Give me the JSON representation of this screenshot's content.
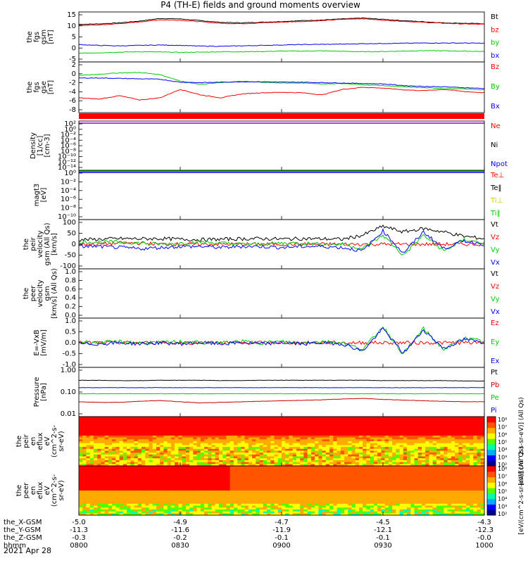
{
  "title": "P4 (TH-E) fields and ground moments overview",
  "date": "2021 Apr 28",
  "colors": {
    "black": "#000000",
    "red": "#ff0000",
    "green": "#00cc00",
    "blue": "#0000ff",
    "gold": "#cccc00",
    "purple": "#9900cc",
    "darkred": "#cc0000"
  },
  "chart_data": [
    {
      "id": "fgs_gsm",
      "type": "line",
      "ylabel": [
        "the",
        "fgs",
        "gsm",
        "[nT]"
      ],
      "yticks": [
        "15",
        "10",
        "5",
        "0",
        "-5"
      ],
      "ylim": [
        -7,
        16
      ],
      "series": [
        {
          "name": "Bt",
          "color": "black",
          "values": [
            10.3,
            10.5,
            11.0,
            11.8,
            13.0,
            12.8,
            12.0,
            11.2,
            11.0,
            11.3,
            11.6,
            12.0,
            12.3,
            12.8,
            13.2,
            12.6,
            12.0,
            11.5,
            11.0,
            10.8,
            10.6
          ]
        },
        {
          "name": "bz",
          "color": "red",
          "values": [
            9.8,
            10.0,
            10.6,
            11.4,
            12.4,
            12.2,
            11.5,
            10.8,
            10.6,
            11.0,
            11.3,
            11.6,
            12.0,
            12.6,
            12.9,
            12.2,
            11.7,
            11.2,
            10.8,
            10.5,
            10.3
          ]
        },
        {
          "name": "by",
          "color": "green",
          "values": [
            -3.0,
            -2.8,
            -2.5,
            -2.3,
            -2.4,
            -2.6,
            -2.5,
            -2.3,
            -2.3,
            -2.2,
            -2.0,
            -2.0,
            -1.9,
            -2.1,
            -2.3,
            -2.2,
            -2.0,
            -1.8,
            -1.9,
            -2.0,
            -2.2
          ]
        },
        {
          "name": "bx",
          "color": "blue",
          "values": [
            1.0,
            0.6,
            0.4,
            0.6,
            0.8,
            0.6,
            0.3,
            0.2,
            0.4,
            0.6,
            0.8,
            1.0,
            1.1,
            1.2,
            1.4,
            1.5,
            1.6,
            1.7,
            1.7,
            1.7,
            1.6
          ]
        }
      ]
    },
    {
      "id": "fgs_gse",
      "type": "line",
      "ylabel": [
        "the",
        "fgs",
        "gse",
        "[nT]"
      ],
      "yticks": [
        "2",
        "0",
        "-2",
        "-4",
        "-6",
        "-8"
      ],
      "ylim": [
        -9,
        3
      ],
      "series": [
        {
          "name": "Bz",
          "color": "red",
          "values": [
            -5.5,
            -5.8,
            -5.0,
            -6.0,
            -5.5,
            -3.5,
            -4.8,
            -5.5,
            -4.6,
            -4.3,
            -4.2,
            -4.3,
            -4.8,
            -3.5,
            -3.0,
            -3.2,
            -3.6,
            -3.8,
            -3.5,
            -4.0,
            -4.3
          ]
        },
        {
          "name": "By",
          "color": "green",
          "values": [
            -0.2,
            0.1,
            0.4,
            0.5,
            0.0,
            -1.5,
            -2.3,
            -1.9,
            -1.6,
            -1.8,
            -2.0,
            -2.0,
            -2.2,
            -2.1,
            -2.4,
            -2.6,
            -2.9,
            -3.1,
            -3.3,
            -3.4,
            -3.6
          ]
        },
        {
          "name": "Bx",
          "color": "blue",
          "values": [
            -0.8,
            -0.8,
            -0.9,
            -1.0,
            -1.1,
            -1.8,
            -1.9,
            -1.8,
            -1.7,
            -1.7,
            -1.8,
            -1.8,
            -1.9,
            -2.0,
            -2.1,
            -2.2,
            -2.6,
            -2.8,
            -2.9,
            -3.1,
            -3.3
          ]
        }
      ]
    },
    {
      "id": "density",
      "type": "line",
      "ylabel": [
        "Density",
        "[1/cc]",
        "[cm-3]"
      ],
      "yticks": [
        "10²",
        "10⁰",
        "10⁻²",
        "10⁻⁴",
        "10⁻⁶",
        "10⁻⁸",
        "10⁻¹⁰",
        "10⁻¹²",
        "10⁻¹⁴"
      ],
      "ylim": [
        -14,
        2
      ],
      "series": [
        {
          "name": "Ne",
          "color": "red",
          "values": []
        },
        {
          "name": "Ni",
          "color": "black",
          "values": []
        },
        {
          "name": "Npot",
          "color": "blue",
          "values": []
        }
      ]
    },
    {
      "id": "temperature",
      "type": "line",
      "ylabel": [
        "magt3",
        "[eV]"
      ],
      "yticks": [
        "10⁰",
        "10⁻²",
        "10⁻⁴",
        "10⁻⁶",
        "10⁻⁸",
        "10⁻¹⁰"
      ],
      "ylim": [
        -10,
        1
      ],
      "series": [
        {
          "name": "Te⊥",
          "color": "red",
          "values": []
        },
        {
          "name": "Te‖",
          "color": "black",
          "values": []
        },
        {
          "name": "Ti⊥",
          "color": "gold",
          "values": []
        },
        {
          "name": "Ti‖",
          "color": "green",
          "values": []
        }
      ]
    },
    {
      "id": "peir_velocity",
      "type": "line",
      "ylabel": [
        "the",
        "peir",
        "velocity",
        "gsm (All Qs)",
        "[km/s]"
      ],
      "yticks": [
        "100",
        "50",
        "0",
        "-50",
        "-100"
      ],
      "ylim": [
        -110,
        110
      ],
      "series": [
        {
          "name": "Vt",
          "color": "black",
          "values": [
            20,
            22,
            25,
            24,
            25,
            22,
            20,
            22,
            24,
            25,
            23,
            25,
            24,
            22,
            40,
            80,
            55,
            70,
            55,
            35,
            25
          ]
        },
        {
          "name": "Vz",
          "color": "red",
          "values": [
            0,
            0,
            5,
            5,
            0,
            0,
            0,
            0,
            0,
            0,
            0,
            0,
            0,
            0,
            0,
            0,
            0,
            0,
            0,
            0,
            0
          ]
        },
        {
          "name": "Vy",
          "color": "green",
          "values": [
            10,
            10,
            10,
            5,
            0,
            5,
            10,
            5,
            0,
            0,
            5,
            5,
            0,
            0,
            -20,
            40,
            -50,
            40,
            -30,
            20,
            5
          ]
        },
        {
          "name": "Vx",
          "color": "blue",
          "values": [
            -10,
            -10,
            -15,
            -20,
            -15,
            -10,
            -10,
            -15,
            -10,
            -10,
            -15,
            -10,
            -10,
            -15,
            -30,
            60,
            -40,
            55,
            -20,
            15,
            0
          ]
        }
      ]
    },
    {
      "id": "peer_velocity",
      "type": "line",
      "ylabel": [
        "the",
        "peer",
        "velocity",
        "gsm",
        "[km/s] (All Qs)"
      ],
      "yticks": [
        "1.0",
        "0.8",
        "0.6",
        "0.4",
        "0.2",
        "0.0"
      ],
      "ylim": [
        0,
        1
      ],
      "series": [
        {
          "name": "Vt",
          "color": "black",
          "values": []
        },
        {
          "name": "Vz",
          "color": "red",
          "values": []
        },
        {
          "name": "Vy",
          "color": "green",
          "values": []
        },
        {
          "name": "Vx",
          "color": "blue",
          "values": []
        }
      ]
    },
    {
      "id": "efield",
      "type": "line",
      "ylabel": [
        "E=-VxB",
        "[mV/m]"
      ],
      "yticks": [
        "1.0",
        "0.5",
        "0.0",
        "-0.5",
        "-1.0"
      ],
      "ylim": [
        -1.05,
        1.05
      ],
      "series": [
        {
          "name": "Ez",
          "color": "red",
          "values": [
            0,
            0,
            0,
            0,
            0,
            0,
            0,
            0,
            0,
            0,
            0,
            0,
            0,
            0,
            0,
            0,
            0,
            0,
            0,
            0,
            0
          ]
        },
        {
          "name": "Ey",
          "color": "green",
          "values": [
            0.05,
            0.0,
            0.05,
            0.0,
            0.0,
            0.05,
            0.0,
            0.0,
            0.05,
            0.0,
            0.05,
            0.0,
            0.05,
            0.0,
            -0.3,
            0.7,
            -0.5,
            0.6,
            -0.3,
            0.2,
            0.05
          ]
        },
        {
          "name": "Ex",
          "color": "blue",
          "values": [
            -0.05,
            -0.05,
            0.0,
            -0.05,
            0.0,
            -0.05,
            0.0,
            -0.05,
            0.0,
            -0.05,
            0.0,
            -0.05,
            0.0,
            -0.05,
            -0.35,
            0.6,
            -0.45,
            0.55,
            -0.25,
            0.15,
            0.0
          ]
        }
      ]
    },
    {
      "id": "pressure",
      "type": "line",
      "ylabel": [
        "Pressure",
        "[nPa]"
      ],
      "yticks": [
        "1.00",
        "0.10",
        "0.01"
      ],
      "ylim": [
        -2,
        0
      ],
      "series": [
        {
          "name": "Pt",
          "color": "black",
          "values": [
            0.3,
            0.3,
            0.29,
            0.29,
            0.3,
            0.3,
            0.3,
            0.29,
            0.29,
            0.3,
            0.3,
            0.3,
            0.3,
            0.3,
            0.3,
            0.29,
            0.29,
            0.29,
            0.29,
            0.28,
            0.28
          ]
        },
        {
          "name": "Pb",
          "color": "darkred",
          "values": [
            0.04,
            0.038,
            0.038,
            0.042,
            0.045,
            0.04,
            0.036,
            0.038,
            0.04,
            0.042,
            0.044,
            0.046,
            0.048,
            0.052,
            0.055,
            0.05,
            0.047,
            0.044,
            0.042,
            0.04,
            0.04
          ]
        },
        {
          "name": "Pe",
          "color": "green",
          "values": [
            0.085,
            0.085,
            0.085,
            0.085,
            0.085,
            0.085,
            0.085,
            0.085,
            0.085,
            0.085,
            0.085,
            0.085,
            0.085,
            0.085,
            0.085,
            0.085,
            0.085,
            0.085,
            0.085,
            0.085,
            0.085
          ]
        },
        {
          "name": "Pi",
          "color": "blue",
          "values": [
            0.15,
            0.15,
            0.15,
            0.15,
            0.15,
            0.15,
            0.15,
            0.15,
            0.15,
            0.15,
            0.15,
            0.15,
            0.15,
            0.15,
            0.15,
            0.15,
            0.15,
            0.15,
            0.15,
            0.15,
            0.15
          ]
        }
      ]
    },
    {
      "id": "peir_eflux",
      "type": "heatmap",
      "ylabel": [
        "the",
        "peir",
        "en",
        "eflux",
        "eV",
        "(cm^2-s-",
        "sr-eV)"
      ],
      "yticks": [
        "10000",
        "1000",
        "100",
        "10"
      ],
      "ylim": [
        5,
        20000
      ],
      "colorbar": {
        "label": "[eV/(cm^2-s-sr-eV)] (All Qs)",
        "ticks": [
          "10⁸",
          "10⁷",
          "10⁶",
          "10⁵",
          "10⁴",
          "10³",
          "10²"
        ]
      }
    },
    {
      "id": "peer_eflux",
      "type": "heatmap",
      "ylabel": [
        "the",
        "peer",
        "en",
        "eflux",
        "eV",
        "(cm^2-s-",
        "sr-eV)"
      ],
      "yticks": [
        "10000",
        "1000",
        "100",
        "10"
      ],
      "ylim": [
        5,
        20000
      ],
      "colorbar": {
        "label": "[eV/(cm^2-s-sr-eV)] (All Qs)",
        "ticks": [
          "10⁸",
          "10⁷",
          "10⁶",
          "10⁵",
          "10⁴",
          "10³",
          "10²"
        ]
      }
    }
  ],
  "x_axis": {
    "row_labels": [
      "the_X-GSM",
      "the_Y-GSM",
      "the_Z-GSM",
      "hhmm"
    ],
    "ticks": [
      [
        "-5.0",
        "-11.3",
        "-0.3",
        "0800"
      ],
      [
        "-4.9",
        "-11.6",
        "-0.2",
        "0830"
      ],
      [
        "-4.7",
        "-11.9",
        "-0.1",
        "0900"
      ],
      [
        "-4.5",
        "-12.1",
        "-0.1",
        "0930"
      ],
      [
        "-4.3",
        "-12.3",
        "-0.0",
        "1000"
      ]
    ]
  }
}
